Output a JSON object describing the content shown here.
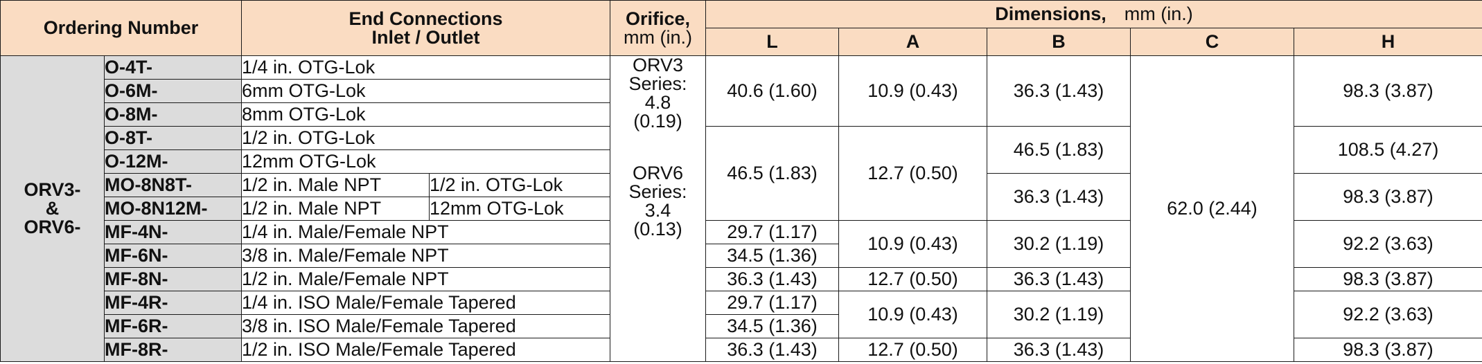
{
  "colors": {
    "header_background": "#fadcc2",
    "ordering_background": "#dcdcdc",
    "border": "#1a1a1a",
    "text": "#111111"
  },
  "headers": {
    "ordering_number": "Ordering Number",
    "end_connections_line1": "End Connections",
    "end_connections_line2": "Inlet / Outlet",
    "orifice_line1": "Orifice,",
    "orifice_line2": "mm (in.)",
    "dimensions": "Dimensions,",
    "dimensions_unit": "mm (in.)",
    "col_L": "L",
    "col_A": "A",
    "col_B": "B",
    "col_C": "C",
    "col_H": "H"
  },
  "group_label": {
    "line1": "ORV3-",
    "line2": "&",
    "line3": "ORV6-"
  },
  "orifice": {
    "orv3_line1": "ORV3",
    "orv3_line2": "Series:",
    "orv3_line3": "4.8",
    "orv3_line4": "(0.19)",
    "orv6_line1": "ORV6",
    "orv6_line2": "Series:",
    "orv6_line3": "3.4",
    "orv6_line4": "(0.13)"
  },
  "rows": [
    {
      "ordering": "O-4T-",
      "connection": "1/4 in. OTG-Lok"
    },
    {
      "ordering": "O-6M-",
      "connection": "6mm OTG-Lok"
    },
    {
      "ordering": "O-8M-",
      "connection": "8mm OTG-Lok"
    },
    {
      "ordering": "O-8T-",
      "connection": "1/2 in. OTG-Lok"
    },
    {
      "ordering": "O-12M-",
      "connection": "12mm OTG-Lok"
    },
    {
      "ordering": "MO-8N8T-",
      "inlet": "1/2 in. Male NPT",
      "outlet": "1/2 in. OTG-Lok"
    },
    {
      "ordering": "MO-8N12M-",
      "inlet": "1/2 in. Male NPT",
      "outlet": "12mm OTG-Lok"
    },
    {
      "ordering": "MF-4N-",
      "connection": "1/4 in. Male/Female NPT"
    },
    {
      "ordering": "MF-6N-",
      "connection": "3/8 in. Male/Female NPT"
    },
    {
      "ordering": "MF-8N-",
      "connection": "1/2 in. Male/Female NPT"
    },
    {
      "ordering": "MF-4R-",
      "connection": "1/4 in. ISO Male/Female Tapered"
    },
    {
      "ordering": "MF-6R-",
      "connection": "3/8 in. ISO Male/Female Tapered"
    },
    {
      "ordering": "MF-8R-",
      "connection": "1/2 in. ISO Male/Female Tapered"
    }
  ],
  "dims": {
    "L_rows_1_3": "40.6 (1.60)",
    "L_rows_4_7": "46.5 (1.83)",
    "L_row_8": "29.7 (1.17)",
    "L_row_9": "34.5 (1.36)",
    "L_row_10": "36.3 (1.43)",
    "L_row_11": "29.7 (1.17)",
    "L_row_12": "34.5 (1.36)",
    "L_row_13": "36.3 (1.43)",
    "A_rows_1_3": "10.9 (0.43)",
    "A_rows_4_7": "12.7 (0.50)",
    "A_rows_8_9": "10.9 (0.43)",
    "A_row_10": "12.7 (0.50)",
    "A_rows_11_12": "10.9 (0.43)",
    "A_row_13": "12.7 (0.50)",
    "B_rows_1_3": "36.3 (1.43)",
    "B_rows_4_5": "46.5 (1.83)",
    "B_rows_6_7": "36.3 (1.43)",
    "B_rows_8_9": "30.2 (1.19)",
    "B_row_10": "36.3 (1.43)",
    "B_rows_11_12": "30.2 (1.19)",
    "B_row_13": "36.3 (1.43)",
    "C_all_rows": "62.0 (2.44)",
    "H_rows_1_3": "98.3 (3.87)",
    "H_rows_4_5": "108.5 (4.27)",
    "H_rows_6_7": "98.3 (3.87)",
    "H_rows_8_9": "92.2 (3.63)",
    "H_row_10": "98.3 (3.87)",
    "H_rows_11_12": "92.2 (3.63)",
    "H_row_13": "98.3 (3.87)"
  }
}
